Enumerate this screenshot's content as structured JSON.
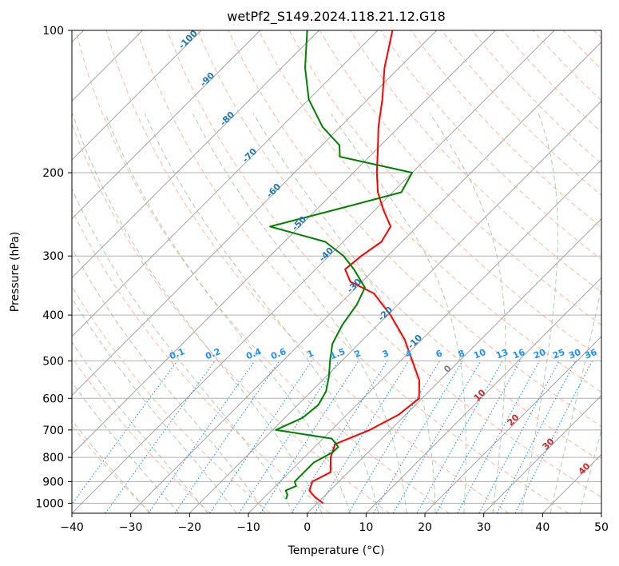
{
  "chart_data": {
    "type": "line",
    "title": "wetPf2_S149.2024.118.21.12.G18",
    "xlabel": "Temperature (°C)",
    "ylabel": "Pressure (hPa)",
    "xlim": [
      -40,
      50
    ],
    "ylim_pressure": [
      1050,
      100
    ],
    "y_scale": "log",
    "skew": true,
    "grid": true,
    "x_ticks": [
      -40,
      -30,
      -20,
      -10,
      0,
      10,
      20,
      30,
      40,
      50
    ],
    "y_ticks": [
      100,
      200,
      300,
      400,
      500,
      600,
      700,
      800,
      900,
      1000
    ],
    "series": [
      {
        "color": "#ff0000",
        "role": "temperature",
        "points": [
          [
            1000,
            1.0
          ],
          [
            970,
            -1.5
          ],
          [
            940,
            -3.5
          ],
          [
            900,
            -4.5
          ],
          [
            860,
            -3.0
          ],
          [
            800,
            -5.5
          ],
          [
            750,
            -7.0
          ],
          [
            700,
            -3.5
          ],
          [
            650,
            -1.2
          ],
          [
            600,
            -0.5
          ],
          [
            550,
            -3.5
          ],
          [
            500,
            -8.0
          ],
          [
            450,
            -13.0
          ],
          [
            400,
            -19.5
          ],
          [
            360,
            -26.0
          ],
          [
            340,
            -32.0
          ],
          [
            320,
            -35.0
          ],
          [
            300,
            -34.5
          ],
          [
            280,
            -33.5
          ],
          [
            260,
            -34.5
          ],
          [
            240,
            -38.5
          ],
          [
            220,
            -42.5
          ],
          [
            200,
            -46.0
          ],
          [
            180,
            -49.5
          ],
          [
            160,
            -53.5
          ],
          [
            140,
            -57.5
          ],
          [
            120,
            -62.5
          ],
          [
            100,
            -67.5
          ]
        ]
      },
      {
        "color": "#008000",
        "role": "dewpoint",
        "points": [
          [
            980,
            -6.0
          ],
          [
            960,
            -6.5
          ],
          [
            940,
            -7.5
          ],
          [
            920,
            -6.5
          ],
          [
            900,
            -7.5
          ],
          [
            860,
            -7.5
          ],
          [
            820,
            -7.5
          ],
          [
            780,
            -6.0
          ],
          [
            760,
            -6.0
          ],
          [
            730,
            -8.5
          ],
          [
            700,
            -19.5
          ],
          [
            660,
            -17.0
          ],
          [
            620,
            -16.5
          ],
          [
            580,
            -17.5
          ],
          [
            540,
            -19.5
          ],
          [
            500,
            -22.0
          ],
          [
            460,
            -24.5
          ],
          [
            420,
            -26.0
          ],
          [
            380,
            -27.0
          ],
          [
            350,
            -28.5
          ],
          [
            320,
            -33.5
          ],
          [
            300,
            -37.5
          ],
          [
            280,
            -43.0
          ],
          [
            260,
            -55.0
          ],
          [
            240,
            -47.0
          ],
          [
            220,
            -38.5
          ],
          [
            200,
            -40.0
          ],
          [
            185,
            -55.0
          ],
          [
            175,
            -57.0
          ],
          [
            160,
            -63.0
          ],
          [
            140,
            -70.0
          ],
          [
            120,
            -76.0
          ],
          [
            100,
            -82.0
          ]
        ]
      }
    ],
    "dry_adiabat_labels": [
      "-100",
      "-90",
      "-80",
      "-70",
      "-60",
      "-50",
      "-40",
      "-30",
      "-20",
      "-10"
    ],
    "mixing_ratio_labels": [
      "0.1",
      "0.2",
      "0.4",
      "0.6",
      "1",
      "1.5",
      "2",
      "3",
      "4",
      "6",
      "8",
      "10",
      "13",
      "16",
      "20",
      "25",
      "30",
      "36"
    ],
    "moist_adiabat_labels": [
      "0",
      "10",
      "20",
      "30",
      "40"
    ],
    "colors": {
      "isotherm": "#999999",
      "isobar": "#b0b0b0",
      "dry_adiabat": "#ffa07a",
      "moist_adiabat": "#8fbc8f",
      "mixing_ratio": "#1e90ff",
      "dry_label": "#1f77b4",
      "mixing_label": "#1e90ff",
      "moist_label": "#d62728",
      "moist_label_zero": "#808080"
    }
  }
}
